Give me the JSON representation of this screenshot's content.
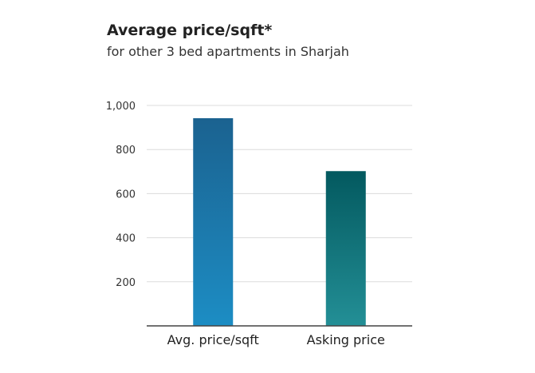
{
  "chart_data": {
    "type": "bar",
    "title": "Average price/sqft*",
    "subtitle": "for other 3 bed apartments in Sharjah",
    "categories": [
      "Avg. price/sqft",
      "Asking price"
    ],
    "values": [
      942,
      702
    ],
    "ylim": [
      0,
      1000
    ],
    "yticks": [
      200,
      400,
      600,
      800,
      1000
    ],
    "ytick_labels": [
      "200",
      "400",
      "600",
      "800",
      "1,000"
    ],
    "xlabel": "",
    "ylabel": "",
    "grid": true,
    "bar_gradients": [
      {
        "top": "#1b6290",
        "bottom": "#1c8dc4"
      },
      {
        "top": "#03595f",
        "bottom": "#238f96"
      }
    ],
    "colors": {
      "grid": "#dcdcdc",
      "axis": "#444444"
    }
  }
}
